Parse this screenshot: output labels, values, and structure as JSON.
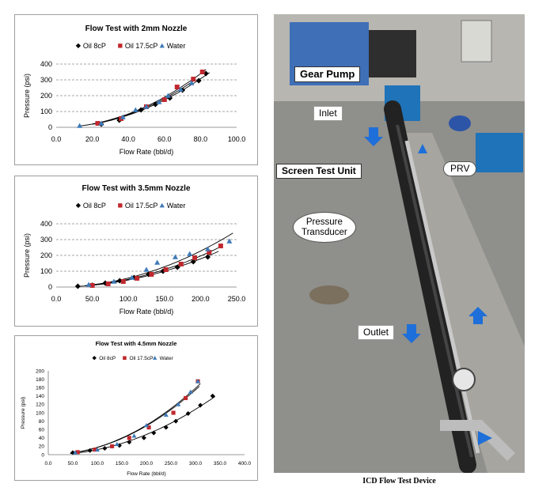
{
  "charts": [
    {
      "title": "Flow Test with 2mm Nozzle",
      "xlabel": "Flow Rate (bbl/d)",
      "ylabel": "Pressure (psi)",
      "xticks": [
        "0.0",
        "20.0",
        "40.0",
        "60.0",
        "80.0",
        "100.0"
      ],
      "yticks": [
        "0",
        "100",
        "200",
        "300",
        "400"
      ],
      "legend": [
        "Oil 8cP",
        "Oil 17.5cP",
        "Water"
      ]
    },
    {
      "title": "Flow Test with 3.5mm Nozzle",
      "xlabel": "Flow Rate (bbl/d)",
      "ylabel": "Pressure (psi)",
      "xticks": [
        "0.0",
        "50.0",
        "100.0",
        "150.0",
        "200.0",
        "250.0"
      ],
      "yticks": [
        "0",
        "100",
        "200",
        "300",
        "400"
      ],
      "legend": [
        "Oil 8cP",
        "Oil 17.5cP",
        "Water"
      ]
    },
    {
      "title": "Flow Test with 4.5mm Nozzle",
      "xlabel": "Flow Rate (bbl/d)",
      "ylabel": "Pressure (psi)",
      "xticks": [
        "0.0",
        "50.0",
        "100.0",
        "150.0",
        "200.0",
        "250.0",
        "300.0",
        "350.0",
        "400.0"
      ],
      "yticks": [
        "0",
        "20",
        "40",
        "60",
        "80",
        "100",
        "120",
        "140",
        "160",
        "180",
        "200"
      ],
      "legend": [
        "Oil 8cP",
        "Oil 17.5cP",
        "Water"
      ]
    }
  ],
  "chart_data": [
    {
      "type": "scatter",
      "title": "Flow Test with 2mm Nozzle",
      "xlabel": "Flow Rate (bbl/d)",
      "ylabel": "Pressure (psi)",
      "xlim": [
        0,
        100
      ],
      "ylim": [
        0,
        400
      ],
      "grid": true,
      "legend_position": "top",
      "series": [
        {
          "name": "Oil 8cP",
          "marker": "diamond",
          "color": "#000000",
          "x": [
            25,
            35,
            47,
            55,
            63,
            70,
            79,
            83
          ],
          "y": [
            20,
            45,
            110,
            145,
            185,
            235,
            295,
            340
          ],
          "trend_x": [
            20,
            85
          ],
          "trend_exp": 2
        },
        {
          "name": "Oil 17.5cP",
          "marker": "square",
          "color": "#c0282d",
          "x": [
            23,
            36,
            50,
            60,
            67,
            76,
            81
          ],
          "y": [
            25,
            55,
            130,
            175,
            255,
            305,
            350
          ],
          "trend_x": [
            20,
            83
          ],
          "trend_exp": 2
        },
        {
          "name": "Water",
          "marker": "triangle",
          "color": "#3e7ab8",
          "x": [
            13,
            25,
            37,
            44,
            50,
            57,
            62,
            69,
            75
          ],
          "y": [
            10,
            25,
            65,
            110,
            130,
            160,
            200,
            240,
            280
          ],
          "trend_x": [
            13,
            77
          ],
          "trend_exp": 2
        }
      ]
    },
    {
      "type": "scatter",
      "title": "Flow Test with 3.5mm Nozzle",
      "xlabel": "Flow Rate (bbl/d)",
      "ylabel": "Pressure (psi)",
      "xlim": [
        0,
        250
      ],
      "ylim": [
        0,
        400
      ],
      "grid": true,
      "legend_position": "top",
      "series": [
        {
          "name": "Oil 8cP",
          "marker": "diamond",
          "color": "#000000",
          "x": [
            30,
            50,
            68,
            88,
            108,
            128,
            148,
            168,
            190,
            210
          ],
          "y": [
            5,
            12,
            25,
            40,
            60,
            80,
            100,
            125,
            160,
            190
          ],
          "trend_x": [
            30,
            225
          ],
          "trend_exp": 2
        },
        {
          "name": "Oil 17.5cP",
          "marker": "square",
          "color": "#c0282d",
          "x": [
            50,
            72,
            93,
            112,
            132,
            152,
            173,
            192,
            212,
            228
          ],
          "y": [
            10,
            20,
            35,
            55,
            80,
            110,
            145,
            185,
            220,
            260
          ],
          "trend_x": [
            40,
            230
          ],
          "trend_exp": 2
        },
        {
          "name": "Water",
          "marker": "triangle",
          "color": "#3e7ab8",
          "x": [
            45,
            80,
            105,
            125,
            140,
            165,
            185,
            210,
            240
          ],
          "y": [
            15,
            35,
            60,
            110,
            155,
            190,
            210,
            240,
            290
          ],
          "trend_x": [
            40,
            245
          ],
          "trend_exp": 2
        }
      ]
    },
    {
      "type": "scatter",
      "title": "Flow Test with 4.5mm Nozzle",
      "xlabel": "Flow Rate (bbl/d)",
      "ylabel": "Pressure (psi)",
      "xlim": [
        0,
        400
      ],
      "ylim": [
        0,
        200
      ],
      "grid": false,
      "legend_position": "top",
      "series": [
        {
          "name": "Oil 8cP",
          "marker": "diamond",
          "color": "#000000",
          "x": [
            50,
            85,
            115,
            145,
            165,
            195,
            215,
            240,
            260,
            285,
            310,
            335
          ],
          "y": [
            5,
            10,
            15,
            22,
            30,
            40,
            52,
            65,
            80,
            98,
            118,
            140
          ],
          "trend_x": [
            45,
            340
          ],
          "trend_exp": 2
        },
        {
          "name": "Oil 17.5cP",
          "marker": "square",
          "color": "#c0282d",
          "x": [
            60,
            95,
            130,
            165,
            205,
            255,
            280,
            305
          ],
          "y": [
            6,
            12,
            20,
            40,
            65,
            100,
            135,
            175
          ],
          "trend_x": [
            45,
            308
          ],
          "trend_exp": 2
        },
        {
          "name": "Water",
          "marker": "triangle",
          "color": "#3e7ab8",
          "x": [
            55,
            100,
            140,
            175,
            200,
            240,
            265,
            290,
            305
          ],
          "y": [
            5,
            12,
            25,
            45,
            70,
            95,
            120,
            150,
            175
          ],
          "trend_x": [
            45,
            310
          ],
          "trend_exp": 2
        }
      ]
    }
  ],
  "photo": {
    "caption": "ICD Flow Test Device",
    "labels": {
      "gear_pump": "Gear Pump",
      "inlet": "Inlet",
      "screen_test_unit": "Screen Test Unit",
      "prv": "PRV",
      "pressure_transducer": "Pressure\nTransducer",
      "outlet": "Outlet"
    },
    "colors": {
      "floor": "#8d8d8a",
      "arrow": "#1e6fd9",
      "bin": "#1f73b8",
      "tubular": "#232323"
    }
  }
}
